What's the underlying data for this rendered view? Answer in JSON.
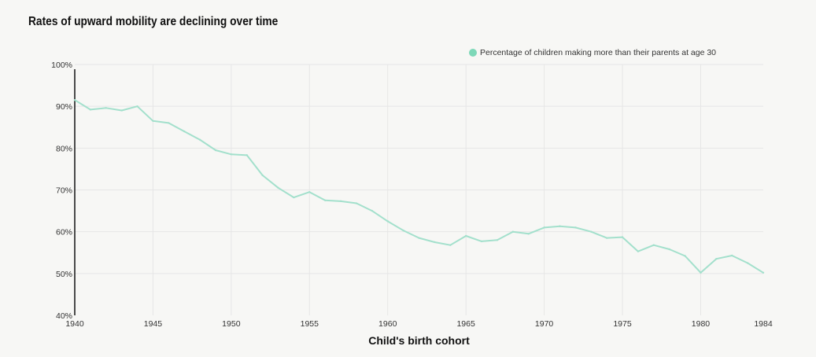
{
  "chart_data": {
    "type": "line",
    "title": "Rates of upward mobility are declining over time",
    "xlabel": "Child's birth cohort",
    "ylabel": "",
    "xlim": [
      1940,
      1984
    ],
    "ylim": [
      40,
      100
    ],
    "x_ticks": [
      "1940",
      "1945",
      "1950",
      "1955",
      "1960",
      "1965",
      "1970",
      "1975",
      "1980",
      "1984"
    ],
    "y_ticks": [
      "40%",
      "50%",
      "60%",
      "70%",
      "80%",
      "90%",
      "100%"
    ],
    "legend_position": "top-right",
    "grid": true,
    "colors": {
      "line": "#a3e0cc",
      "legend_dot": "#7dd8b8",
      "grid": "#e6e6e6",
      "axis": "#111111"
    },
    "series": [
      {
        "name": "Percentage of children making more than their parents at age 30",
        "x": [
          1940,
          1941,
          1942,
          1943,
          1944,
          1945,
          1946,
          1947,
          1948,
          1949,
          1950,
          1951,
          1952,
          1953,
          1954,
          1955,
          1956,
          1957,
          1958,
          1959,
          1960,
          1961,
          1962,
          1963,
          1964,
          1965,
          1966,
          1967,
          1968,
          1969,
          1970,
          1971,
          1972,
          1973,
          1974,
          1975,
          1976,
          1977,
          1978,
          1979,
          1980,
          1981,
          1982,
          1983,
          1984
        ],
        "values": [
          91.5,
          89.2,
          89.6,
          89.0,
          90.0,
          86.5,
          86.0,
          84.0,
          82.0,
          79.5,
          78.5,
          78.3,
          73.5,
          70.5,
          68.2,
          69.5,
          67.5,
          67.3,
          66.8,
          65.0,
          62.5,
          60.3,
          58.5,
          57.5,
          56.8,
          59.0,
          57.7,
          58.0,
          60.0,
          59.5,
          61.0,
          61.3,
          61.0,
          60.0,
          58.5,
          58.7,
          55.3,
          56.8,
          55.8,
          54.2,
          50.2,
          53.5,
          54.3,
          52.5,
          50.2
        ]
      }
    ]
  }
}
